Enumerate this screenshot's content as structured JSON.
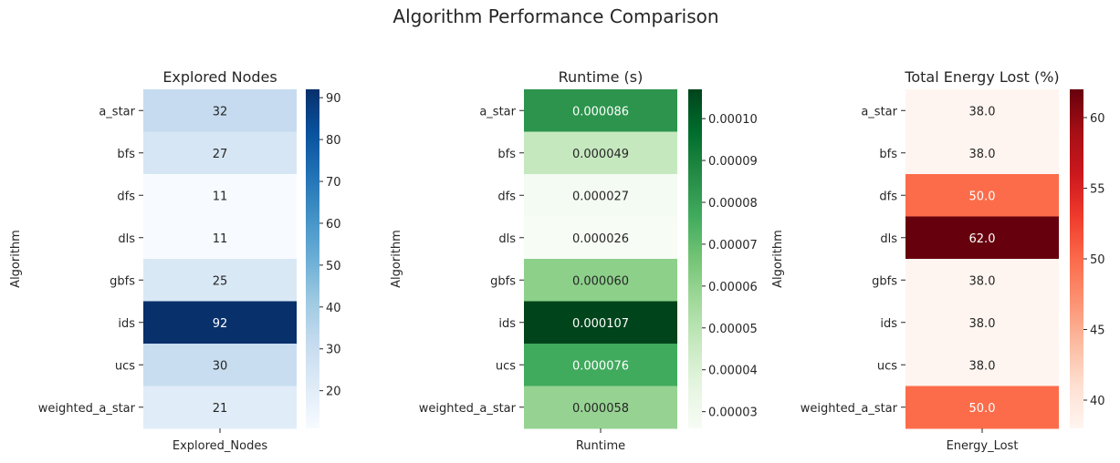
{
  "figure": {
    "title": "Algorithm Performance Comparison"
  },
  "chart_data": [
    {
      "type": "heatmap",
      "title": "Explored Nodes",
      "xlabel": "Explored_Nodes",
      "ylabel": "Algorithm",
      "rows": [
        "a_star",
        "bfs",
        "dfs",
        "dls",
        "gbfs",
        "ids",
        "ucs",
        "weighted_a_star"
      ],
      "columns": [
        "Explored_Nodes"
      ],
      "values": [
        32,
        27,
        11,
        11,
        25,
        92,
        30,
        21
      ],
      "labels": [
        "32",
        "27",
        "11",
        "11",
        "25",
        "92",
        "30",
        "21"
      ],
      "colormap": "Blues",
      "colors": [
        "#c6dbef",
        "#d6e6f4",
        "#f7fbff",
        "#f7fbff",
        "#d9e8f5",
        "#08306b",
        "#c8ddf0",
        "#e0ecf8"
      ],
      "vmin": 11,
      "vmax": 92,
      "colorbar_ticks": [
        20,
        30,
        40,
        50,
        60,
        70,
        80,
        90
      ],
      "colorbar_tick_labels": [
        "20",
        "30",
        "40",
        "50",
        "60",
        "70",
        "80",
        "90"
      ]
    },
    {
      "type": "heatmap",
      "title": "Runtime (s)",
      "xlabel": "Runtime",
      "ylabel": "Algorithm",
      "rows": [
        "a_star",
        "bfs",
        "dfs",
        "dls",
        "gbfs",
        "ids",
        "ucs",
        "weighted_a_star"
      ],
      "columns": [
        "Runtime"
      ],
      "values": [
        8.6e-05,
        4.9e-05,
        2.7e-05,
        2.6e-05,
        6e-05,
        0.000107,
        7.6e-05,
        5.8e-05
      ],
      "labels": [
        "0.000086",
        "0.000049",
        "0.000027",
        "0.000026",
        "0.000060",
        "0.000107",
        "0.000076",
        "0.000058"
      ],
      "colormap": "Greens",
      "colors": [
        "#2c944c",
        "#c6e8bf",
        "#f4fbf2",
        "#f7fcf5",
        "#8dd08a",
        "#00441b",
        "#40aa5d",
        "#96d392"
      ],
      "vmin": 2.6e-05,
      "vmax": 0.000107,
      "colorbar_ticks": [
        3e-05,
        4e-05,
        5e-05,
        6e-05,
        7e-05,
        8e-05,
        9e-05,
        0.0001
      ],
      "colorbar_tick_labels": [
        "0.00003",
        "0.00004",
        "0.00005",
        "0.00006",
        "0.00007",
        "0.00008",
        "0.00009",
        "0.00010"
      ]
    },
    {
      "type": "heatmap",
      "title": "Total Energy Lost (%)",
      "xlabel": "Energy_Lost",
      "ylabel": "Algorithm",
      "rows": [
        "a_star",
        "bfs",
        "dfs",
        "dls",
        "gbfs",
        "ids",
        "ucs",
        "weighted_a_star"
      ],
      "columns": [
        "Energy_Lost"
      ],
      "values": [
        38.0,
        38.0,
        50.0,
        62.0,
        38.0,
        38.0,
        38.0,
        50.0
      ],
      "labels": [
        "38.0",
        "38.0",
        "50.0",
        "62.0",
        "38.0",
        "38.0",
        "38.0",
        "50.0"
      ],
      "colormap": "Reds",
      "colors": [
        "#fff5f0",
        "#fff5f0",
        "#fc6c4a",
        "#67000d",
        "#fff5f0",
        "#fff5f0",
        "#fff5f0",
        "#fc6c4a"
      ],
      "vmin": 38.0,
      "vmax": 62.0,
      "colorbar_ticks": [
        40,
        45,
        50,
        55,
        60
      ],
      "colorbar_tick_labels": [
        "40",
        "45",
        "50",
        "55",
        "60"
      ]
    }
  ]
}
